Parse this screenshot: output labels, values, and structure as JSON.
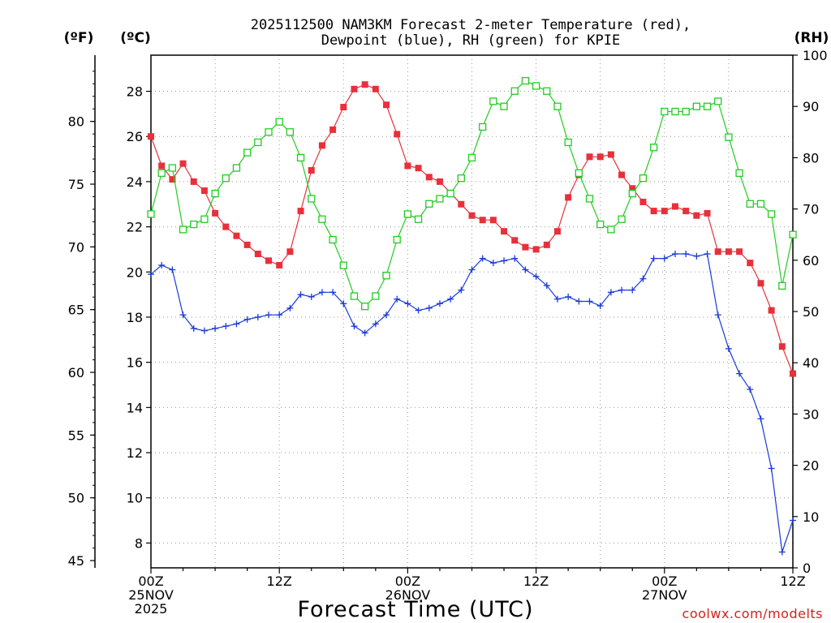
{
  "chart_data": {
    "type": "line",
    "title_lines": [
      "2025112500 NAM3KM Forecast 2-meter Temperature (red),",
      "Dewpoint (blue), RH (green) for KPIE"
    ],
    "xlabel": "Forecast Time (UTC)",
    "credit": "coolwx.com/modelts",
    "units": {
      "fahrenheit": "(ºF)",
      "celsius": "(ºC)",
      "rh": "(RH)"
    },
    "x_range_hours": [
      0,
      60
    ],
    "x_ticks": [
      {
        "hour": 0,
        "lines": [
          "00Z",
          "25NOV",
          "2025"
        ]
      },
      {
        "hour": 12,
        "lines": [
          "12Z"
        ]
      },
      {
        "hour": 24,
        "lines": [
          "00Z",
          "26NOV"
        ]
      },
      {
        "hour": 36,
        "lines": [
          "12Z"
        ]
      },
      {
        "hour": 48,
        "lines": [
          "00Z",
          "27NOV"
        ]
      },
      {
        "hour": 60,
        "lines": [
          "12Z"
        ]
      }
    ],
    "y_celsius_range": [
      6.9,
      29.6
    ],
    "y_celsius_ticks": [
      "8",
      "10",
      "12",
      "14",
      "16",
      "18",
      "20",
      "22",
      "24",
      "26",
      "28"
    ],
    "y_fahrenheit_ticks": [
      "45",
      "50",
      "55",
      "60",
      "65",
      "70",
      "75",
      "80"
    ],
    "y_rh_range": [
      0,
      100
    ],
    "y_rh_ticks": [
      "0",
      "10",
      "20",
      "30",
      "40",
      "50",
      "60",
      "70",
      "80",
      "90",
      "100"
    ],
    "series": [
      {
        "name": "Temperature",
        "units": "°C",
        "color": "#e8303a",
        "marker": "filled-square",
        "x": [
          0,
          1,
          2,
          3,
          4,
          5,
          6,
          7,
          8,
          9,
          10,
          11,
          12,
          13,
          14,
          15,
          16,
          17,
          18,
          19,
          20,
          21,
          22,
          23,
          24,
          25,
          26,
          27,
          28,
          29,
          30,
          31,
          32,
          33,
          34,
          35,
          36,
          37,
          38,
          39,
          40,
          41,
          42,
          43,
          44,
          45,
          46,
          47,
          48,
          49,
          50,
          51,
          52,
          53,
          54,
          55,
          56,
          57,
          58,
          59,
          60
        ],
        "values": [
          26.0,
          24.7,
          24.1,
          24.8,
          24.0,
          23.6,
          22.6,
          22.0,
          21.6,
          21.2,
          20.8,
          20.5,
          20.3,
          20.9,
          22.7,
          24.5,
          25.6,
          26.3,
          27.3,
          28.1,
          28.3,
          28.1,
          27.4,
          26.1,
          24.7,
          24.6,
          24.2,
          24.0,
          23.5,
          23.0,
          22.5,
          22.3,
          22.3,
          21.8,
          21.4,
          21.1,
          21.0,
          21.2,
          21.8,
          23.3,
          24.3,
          25.1,
          25.1,
          25.2,
          24.3,
          23.7,
          23.1,
          22.7,
          22.7,
          22.9,
          22.7,
          22.5,
          22.6,
          20.9,
          20.9,
          20.9,
          20.4,
          19.5,
          18.3,
          16.7,
          15.5
        ]
      },
      {
        "name": "Dewpoint",
        "units": "°C",
        "color": "#1a3ad8",
        "marker": "plus",
        "x": [
          0,
          1,
          2,
          3,
          4,
          5,
          6,
          7,
          8,
          9,
          10,
          11,
          12,
          13,
          14,
          15,
          16,
          17,
          18,
          19,
          20,
          21,
          22,
          23,
          24,
          25,
          26,
          27,
          28,
          29,
          30,
          31,
          32,
          33,
          34,
          35,
          36,
          37,
          38,
          39,
          40,
          41,
          42,
          43,
          44,
          45,
          46,
          47,
          48,
          49,
          50,
          51,
          52,
          53,
          54,
          55,
          56,
          57,
          58,
          59,
          60
        ],
        "values": [
          19.9,
          20.3,
          20.1,
          18.1,
          17.5,
          17.4,
          17.5,
          17.6,
          17.7,
          17.9,
          18.0,
          18.1,
          18.1,
          18.4,
          19.0,
          18.9,
          19.1,
          19.1,
          18.6,
          17.6,
          17.3,
          17.7,
          18.1,
          18.8,
          18.6,
          18.3,
          18.4,
          18.6,
          18.8,
          19.2,
          20.1,
          20.6,
          20.4,
          20.5,
          20.6,
          20.1,
          19.8,
          19.4,
          18.8,
          18.9,
          18.7,
          18.7,
          18.5,
          19.1,
          19.2,
          19.2,
          19.7,
          20.6,
          20.6,
          20.8,
          20.8,
          20.7,
          20.8,
          18.1,
          16.6,
          15.5,
          14.8,
          13.5,
          11.3,
          7.6,
          9.0
        ]
      },
      {
        "name": "Relative Humidity",
        "units": "%",
        "color": "#22cc22",
        "marker": "open-square",
        "axis": "rh",
        "x": [
          0,
          1,
          2,
          3,
          4,
          5,
          6,
          7,
          8,
          9,
          10,
          11,
          12,
          13,
          14,
          15,
          16,
          17,
          18,
          19,
          20,
          21,
          22,
          23,
          24,
          25,
          26,
          27,
          28,
          29,
          30,
          31,
          32,
          33,
          34,
          35,
          36,
          37,
          38,
          39,
          40,
          41,
          42,
          43,
          44,
          45,
          46,
          47,
          48,
          49,
          50,
          51,
          52,
          53,
          54,
          55,
          56,
          57,
          58,
          59,
          60
        ],
        "values": [
          69,
          77,
          78,
          66,
          67,
          68,
          73,
          76,
          78,
          81,
          83,
          85,
          87,
          85,
          80,
          72,
          68,
          64,
          59,
          53,
          51,
          53,
          57,
          64,
          69,
          68,
          71,
          72,
          73,
          76,
          80,
          86,
          91,
          90,
          93,
          95,
          94,
          93,
          90,
          83,
          77,
          72,
          67,
          66,
          68,
          73,
          76,
          82,
          89,
          89,
          89,
          90,
          90,
          91,
          84,
          77,
          71,
          71,
          69,
          55,
          65
        ]
      }
    ]
  }
}
